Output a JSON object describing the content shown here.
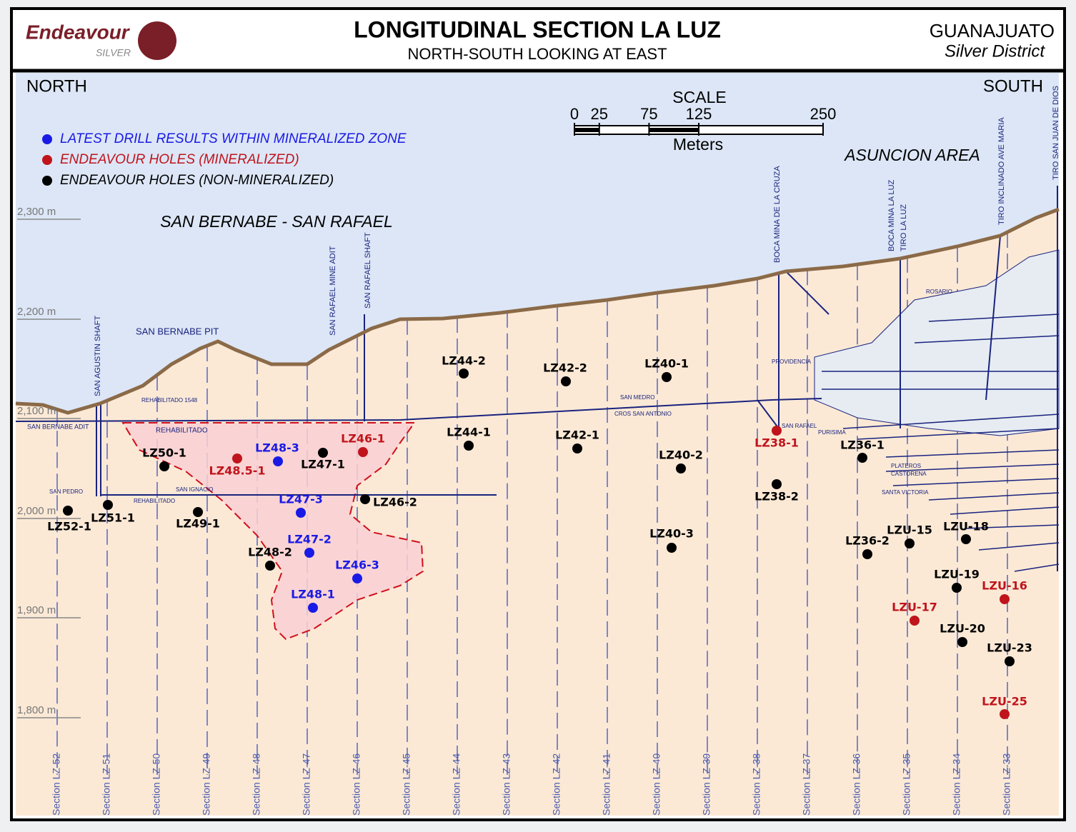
{
  "header": {
    "brand": "Endeavour",
    "brand_sub": "SILVER",
    "title": "LONGITUDINAL SECTION LA LUZ",
    "subtitle": "NORTH-SOUTH LOOKING AT EAST",
    "region": "GUANAJUATO",
    "region_sub": "Silver District"
  },
  "directions": {
    "north": "NORTH",
    "south": "SOUTH"
  },
  "scale": {
    "title": "SCALE",
    "ticks": [
      0,
      25,
      75,
      125,
      250
    ],
    "unit": "Meters"
  },
  "legend": [
    {
      "label": "LATEST DRILL RESULTS WITHIN MINERALIZED ZONE",
      "color": "#1a1ae6"
    },
    {
      "label": "ENDEAVOUR HOLES (MINERALIZED)",
      "color": "#c0141c"
    },
    {
      "label": "ENDEAVOUR HOLES (NON-MINERALIZED)",
      "color": "#000000"
    }
  ],
  "areas": [
    "SAN BERNABE - SAN RAFAEL",
    "ASUNCION AREA"
  ],
  "elevations": [
    "2,300 m",
    "2,200 m",
    "2,100 m",
    "2,000 m",
    "1,900 m",
    "1,800 m"
  ],
  "sections": [
    "Section LZ-52",
    "Section LZ-51",
    "Section LZ-50",
    "Section LZ-49",
    "Section LZ-48",
    "Section LZ-47",
    "Section LZ-46",
    "Section LZ-45",
    "Section LZ-44",
    "Section LZ-43",
    "Section LZ-42",
    "Section LZ-41",
    "Section LZ-40",
    "Section LZ-39",
    "Section LZ-38",
    "Section LZ-37",
    "Section LZ-36",
    "Section LZ-35",
    "Section LZ-34",
    "Section LZ-33"
  ],
  "shafts": [
    "SAN AGUSTIN SHAFT",
    "SAN RAFAEL MINE ADIT",
    "SAN RAFAEL SHAFT",
    "BOCA MINA DE LA CRUZA",
    "BOCA MINA LA LUZ",
    "TIRO LA LUZ",
    "TIRO INCLINADO AVE MARIA",
    "TIRO SAN JUAN DE DIOS"
  ],
  "workings": [
    "SAN BERNABE PIT",
    "REHABILITADO 1548",
    "SAN BERNABE ADIT",
    "REHABILITADO",
    "SAN MEDRO",
    "CROS SAN ANTONIO",
    "SAN RAFAEL",
    "PURISIMA",
    "PLATEROS",
    "CASTORENA",
    "SANTA VICTORIA",
    "SAN PEDRO",
    "REHABILITADO",
    "SAN IGNACIO",
    "ROSARIO",
    "PROVIDENCIA"
  ],
  "holes": [
    {
      "label": "LZ48-3",
      "color": "#1a1ae6"
    },
    {
      "label": "LZ47-3",
      "color": "#1a1ae6"
    },
    {
      "label": "LZ47-2",
      "color": "#1a1ae6"
    },
    {
      "label": "LZ46-3",
      "color": "#1a1ae6"
    },
    {
      "label": "LZ48-1",
      "color": "#1a1ae6"
    },
    {
      "label": "LZ46-1",
      "color": "#c0141c"
    },
    {
      "label": "LZ48.5-1",
      "color": "#c0141c"
    },
    {
      "label": "LZ38-1",
      "color": "#c0141c"
    },
    {
      "label": "LZU-17",
      "color": "#c0141c"
    },
    {
      "label": "LZU-16",
      "color": "#c0141c"
    },
    {
      "label": "LZU-25",
      "color": "#c0141c"
    },
    {
      "label": "LZ44-2",
      "color": "#000000"
    },
    {
      "label": "LZ42-2",
      "color": "#000000"
    },
    {
      "label": "LZ40-1",
      "color": "#000000"
    },
    {
      "label": "LZ44-1",
      "color": "#000000"
    },
    {
      "label": "LZ42-1",
      "color": "#000000"
    },
    {
      "label": "LZ40-2",
      "color": "#000000"
    },
    {
      "label": "LZ47-1",
      "color": "#000000"
    },
    {
      "label": "LZ50-1",
      "color": "#000000"
    },
    {
      "label": "LZ46-2",
      "color": "#000000"
    },
    {
      "label": "LZ49-1",
      "color": "#000000"
    },
    {
      "label": "LZ51-1",
      "color": "#000000"
    },
    {
      "label": "LZ52-1",
      "color": "#000000"
    },
    {
      "label": "LZ48-2",
      "color": "#000000"
    },
    {
      "label": "LZ38-2",
      "color": "#000000"
    },
    {
      "label": "LZ40-3",
      "color": "#000000"
    },
    {
      "label": "LZ36-1",
      "color": "#000000"
    },
    {
      "label": "LZ36-2",
      "color": "#000000"
    },
    {
      "label": "LZU-15",
      "color": "#000000"
    },
    {
      "label": "LZU-18",
      "color": "#000000"
    },
    {
      "label": "LZU-19",
      "color": "#000000"
    },
    {
      "label": "LZU-20",
      "color": "#000000"
    },
    {
      "label": "LZU-23",
      "color": "#000000"
    }
  ]
}
